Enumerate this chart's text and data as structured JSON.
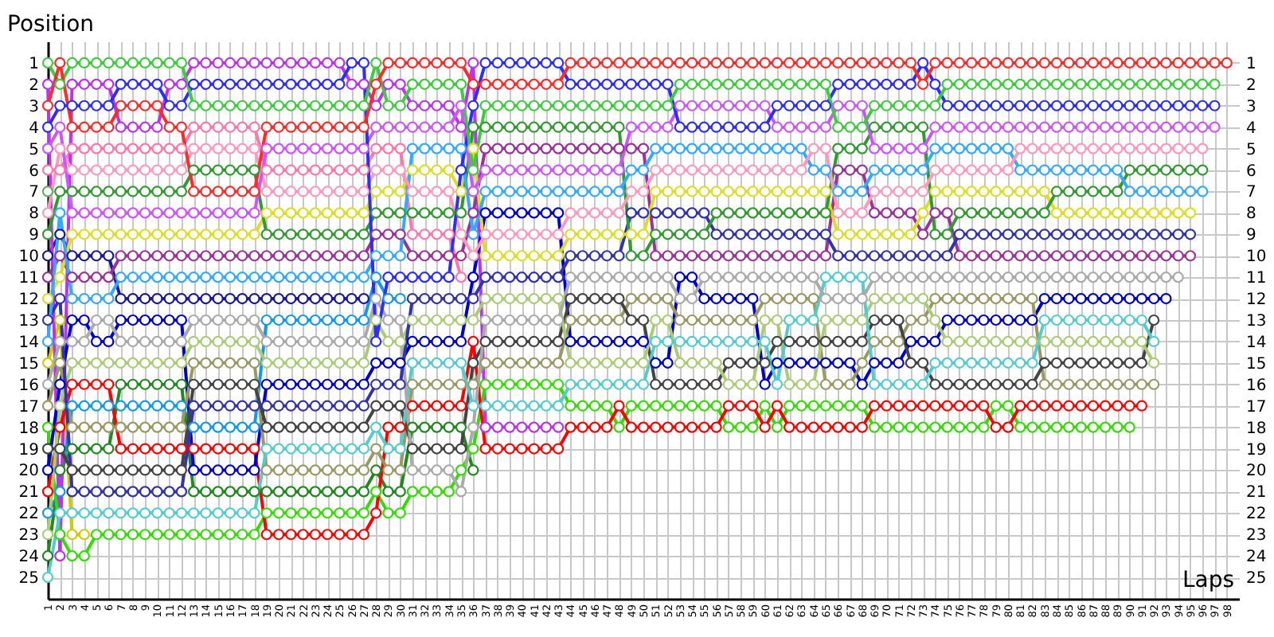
{
  "chart_data": {
    "type": "line",
    "xlabel": "Laps",
    "ylabel": "Position",
    "x": [
      1,
      2,
      3,
      4,
      5,
      6,
      7,
      8,
      9,
      10,
      11,
      12,
      13,
      14,
      15,
      16,
      17,
      18,
      19,
      20,
      21,
      22,
      23,
      24,
      25,
      26,
      27,
      28,
      29,
      30,
      31,
      32,
      33,
      34,
      35,
      36,
      37,
      38,
      39,
      40,
      41,
      42,
      43,
      44,
      45,
      46,
      47,
      48,
      49,
      50,
      51,
      52,
      53,
      54,
      55,
      56,
      57,
      58,
      59,
      60,
      61,
      62,
      63,
      64,
      65,
      66,
      67,
      68,
      69,
      70,
      71,
      72,
      73,
      74,
      75,
      76,
      77,
      78,
      79,
      80,
      81,
      82,
      83,
      84,
      85,
      86,
      87,
      88,
      89,
      90,
      91,
      92,
      93,
      94,
      95,
      96,
      97,
      98
    ],
    "xlim": [
      1,
      99
    ],
    "xticks": [
      1,
      2,
      3,
      4,
      5,
      6,
      7,
      8,
      9,
      10,
      11,
      12,
      13,
      14,
      15,
      16,
      17,
      18,
      19,
      20,
      21,
      22,
      23,
      24,
      25,
      26,
      27,
      28,
      29,
      30,
      31,
      32,
      33,
      34,
      35,
      36,
      37,
      38,
      39,
      40,
      41,
      42,
      43,
      44,
      45,
      46,
      47,
      48,
      49,
      50,
      51,
      52,
      53,
      54,
      55,
      56,
      57,
      58,
      59,
      60,
      61,
      62,
      63,
      64,
      65,
      66,
      67,
      68,
      69,
      70,
      71,
      72,
      73,
      74,
      75,
      76,
      77,
      78,
      79,
      80,
      81,
      82,
      83,
      84,
      85,
      86,
      87,
      88,
      89,
      90,
      91,
      92,
      93,
      94,
      95,
      96,
      97,
      98
    ],
    "ylim": [
      26,
      0
    ],
    "yticks": [
      1,
      2,
      3,
      4,
      5,
      6,
      7,
      8,
      9,
      10,
      11,
      12,
      13,
      14,
      15,
      16,
      17,
      18,
      19,
      20,
      21,
      22,
      23,
      24,
      25
    ],
    "y2lim": [
      26,
      0
    ],
    "y2ticks": [
      1,
      2,
      3,
      4,
      5,
      6,
      7,
      8,
      9,
      10,
      11,
      12,
      13,
      14,
      15,
      16,
      17,
      18,
      19,
      20,
      21,
      22,
      23,
      24,
      25
    ],
    "grid": true,
    "marker": "circle",
    "line_style": "solid",
    "series": [
      {
        "color": "#66aa66",
        "x": [
          1
        ],
        "values": [
          7
        ]
      },
      {
        "color": "#cccc00",
        "x": [
          1,
          2,
          3,
          4
        ],
        "values": [
          15,
          13,
          23,
          23
        ]
      },
      {
        "color": "#1199ee",
        "x": [
          1,
          2,
          3,
          4,
          5,
          6,
          7,
          8,
          9,
          10,
          11,
          12,
          13,
          14,
          15,
          16,
          17,
          18,
          19,
          20,
          21,
          22,
          23,
          24,
          25,
          26,
          27,
          28,
          29,
          30
        ],
        "values": [
          22,
          21,
          17,
          17,
          17,
          17,
          17,
          17,
          17,
          17,
          17,
          17,
          18,
          18,
          18,
          18,
          18,
          18,
          13,
          13,
          13,
          13,
          13,
          13,
          13,
          13,
          13,
          11,
          12,
          12
        ]
      },
      {
        "color": "#1a1a99",
        "x": [
          1,
          2,
          3,
          4,
          5,
          6,
          7,
          8,
          9,
          10,
          11,
          12,
          13,
          14,
          15,
          16,
          17,
          18,
          19,
          20,
          21,
          22,
          23,
          24,
          25,
          26,
          27
        ],
        "values": [
          10,
          9,
          10,
          10,
          10,
          10,
          12,
          12,
          12,
          12,
          12,
          12,
          12,
          12,
          12,
          12,
          12,
          12,
          12,
          12,
          12,
          12,
          12,
          12,
          12,
          12,
          12
        ]
      },
      {
        "color": "#228822",
        "x": [
          1,
          2,
          3,
          4,
          5,
          6,
          7,
          8,
          9,
          10,
          11,
          12,
          13,
          14,
          15,
          16,
          17,
          18,
          19,
          20,
          21,
          22,
          23,
          24,
          25,
          26,
          27,
          28,
          29,
          30,
          31,
          32,
          33,
          34,
          35,
          36
        ],
        "values": [
          24,
          20,
          19,
          19,
          19,
          19,
          16,
          16,
          16,
          16,
          16,
          16,
          21,
          21,
          21,
          21,
          21,
          21,
          21,
          21,
          21,
          21,
          21,
          21,
          21,
          21,
          21,
          20,
          21,
          21,
          18,
          18,
          18,
          18,
          18,
          20
        ]
      },
      {
        "color": "#ff77aa",
        "x": [
          1,
          2,
          3,
          4,
          5,
          6,
          7,
          8,
          9,
          10,
          11,
          12,
          13,
          14,
          15,
          16,
          17,
          18,
          19,
          20,
          21,
          22,
          23,
          24,
          25,
          26,
          27,
          28,
          29,
          30,
          31,
          32,
          33,
          34,
          35
        ],
        "values": [
          6,
          6,
          5,
          5,
          5,
          5,
          5,
          5,
          5,
          5,
          5,
          5,
          4,
          4,
          4,
          4,
          4,
          4,
          6,
          6,
          6,
          6,
          6,
          6,
          6,
          6,
          6,
          5,
          5,
          5,
          9,
          9,
          9,
          9,
          11
        ]
      },
      {
        "color": "#bb33ee",
        "x": [
          1,
          2,
          3,
          4,
          5,
          6,
          7,
          8,
          9,
          10,
          11,
          12,
          13,
          14,
          15,
          16,
          17,
          18,
          19,
          20,
          21,
          22,
          23,
          24,
          25,
          26,
          27,
          28,
          29,
          30,
          31,
          32,
          33,
          34,
          35,
          36,
          37,
          38,
          39,
          40,
          41,
          42,
          43
        ],
        "values": [
          2,
          24,
          2,
          2,
          2,
          2,
          4,
          4,
          4,
          4,
          2,
          2,
          1,
          1,
          1,
          1,
          1,
          1,
          1,
          1,
          1,
          1,
          1,
          1,
          1,
          2,
          2,
          3,
          2,
          2,
          3,
          3,
          3,
          3,
          4,
          1,
          18,
          18,
          18,
          18,
          18,
          18,
          18
        ]
      },
      {
        "color": "#33dd00",
        "values": [
          18,
          23,
          24,
          24,
          23,
          23,
          23,
          23,
          23,
          23,
          23,
          23,
          23,
          23,
          23,
          23,
          23,
          23,
          22,
          22,
          22,
          22,
          22,
          22,
          22,
          22,
          22,
          21,
          22,
          22,
          21,
          21,
          21,
          21,
          20,
          19,
          16,
          16,
          16,
          16,
          16,
          16,
          16,
          17,
          17,
          17,
          17,
          18,
          17,
          17,
          17,
          17,
          17,
          17,
          17,
          17,
          18,
          18,
          18,
          17,
          18,
          17,
          17,
          17,
          17,
          17,
          17,
          17,
          18,
          18,
          18,
          18,
          18,
          18,
          18,
          18,
          18,
          18,
          17,
          17,
          18,
          18,
          18,
          18,
          18,
          18,
          18,
          18,
          18,
          18,
          null,
          null,
          null,
          null,
          null,
          null,
          null,
          null
        ]
      },
      {
        "color": "#ff0000",
        "values": [
          21,
          18,
          16,
          16,
          16,
          16,
          19,
          19,
          19,
          19,
          19,
          19,
          19,
          19,
          19,
          19,
          19,
          19,
          23,
          23,
          23,
          23,
          23,
          23,
          23,
          23,
          23,
          22,
          18,
          18,
          17,
          17,
          17,
          17,
          17,
          14,
          19,
          19,
          19,
          19,
          19,
          19,
          19,
          18,
          18,
          18,
          18,
          17,
          18,
          18,
          18,
          18,
          18,
          18,
          18,
          18,
          17,
          17,
          17,
          18,
          17,
          18,
          18,
          18,
          18,
          18,
          18,
          18,
          17,
          17,
          17,
          17,
          17,
          17,
          17,
          17,
          17,
          17,
          18,
          18,
          17,
          17,
          17,
          17,
          17,
          17,
          17,
          17,
          17,
          17,
          17,
          null,
          null,
          null,
          null,
          null,
          null,
          null
        ]
      },
      {
        "color": "#0000cc",
        "values": [
          20,
          16,
          13,
          13,
          14,
          14,
          13,
          13,
          13,
          13,
          13,
          13,
          20,
          20,
          20,
          20,
          20,
          20,
          16,
          16,
          16,
          16,
          16,
          16,
          16,
          16,
          16,
          15,
          15,
          15,
          14,
          14,
          14,
          14,
          14,
          11,
          8,
          8,
          8,
          8,
          8,
          8,
          8,
          14,
          14,
          14,
          14,
          14,
          14,
          14,
          15,
          15,
          11,
          11,
          12,
          12,
          12,
          12,
          12,
          16,
          15,
          15,
          15,
          15,
          15,
          15,
          15,
          16,
          15,
          15,
          15,
          14,
          14,
          14,
          13,
          13,
          13,
          13,
          13,
          13,
          13,
          13,
          12,
          12,
          12,
          12,
          12,
          12,
          12,
          12,
          12,
          12,
          12,
          null,
          null,
          null,
          null,
          null
        ]
      },
      {
        "color": "#999966",
        "values": [
          17,
          15,
          18,
          18,
          18,
          18,
          18,
          18,
          18,
          18,
          18,
          18,
          15,
          15,
          15,
          15,
          15,
          15,
          20,
          20,
          20,
          20,
          20,
          20,
          20,
          20,
          20,
          19,
          20,
          20,
          16,
          16,
          16,
          16,
          16,
          16,
          15,
          15,
          15,
          15,
          15,
          15,
          15,
          13,
          13,
          13,
          13,
          13,
          12,
          12,
          12,
          12,
          13,
          13,
          13,
          13,
          13,
          13,
          13,
          12,
          12,
          12,
          12,
          12,
          16,
          16,
          16,
          15,
          14,
          14,
          14,
          13,
          13,
          12,
          12,
          12,
          12,
          12,
          12,
          12,
          12,
          12,
          16,
          16,
          16,
          16,
          16,
          16,
          16,
          16,
          16,
          16,
          null,
          null,
          null,
          null,
          null,
          null
        ]
      },
      {
        "color": "#444444",
        "values": [
          19,
          19,
          20,
          20,
          20,
          20,
          20,
          20,
          20,
          20,
          20,
          20,
          16,
          16,
          16,
          16,
          16,
          16,
          18,
          18,
          18,
          18,
          18,
          18,
          18,
          18,
          18,
          17,
          17,
          17,
          19,
          19,
          19,
          19,
          19,
          15,
          14,
          14,
          14,
          14,
          14,
          14,
          14,
          12,
          12,
          12,
          12,
          12,
          13,
          13,
          16,
          16,
          16,
          16,
          16,
          16,
          15,
          15,
          15,
          15,
          14,
          14,
          14,
          14,
          14,
          14,
          14,
          14,
          13,
          13,
          13,
          15,
          15,
          16,
          16,
          16,
          16,
          16,
          16,
          16,
          16,
          16,
          15,
          15,
          15,
          15,
          15,
          15,
          15,
          15,
          15,
          13,
          null,
          null,
          null,
          null,
          null,
          null
        ]
      },
      {
        "color": "#aacc77",
        "values": [
          23,
          17,
          15,
          15,
          15,
          15,
          15,
          15,
          15,
          15,
          15,
          15,
          14,
          14,
          14,
          14,
          14,
          14,
          15,
          15,
          15,
          15,
          15,
          15,
          15,
          15,
          15,
          13,
          14,
          14,
          13,
          13,
          13,
          13,
          13,
          13,
          12,
          12,
          12,
          12,
          12,
          12,
          12,
          15,
          15,
          15,
          15,
          15,
          15,
          15,
          13,
          13,
          15,
          15,
          15,
          15,
          16,
          16,
          16,
          13,
          13,
          16,
          16,
          16,
          13,
          13,
          13,
          13,
          12,
          12,
          12,
          12,
          12,
          13,
          14,
          14,
          14,
          14,
          14,
          14,
          14,
          14,
          14,
          14,
          14,
          14,
          14,
          14,
          14,
          14,
          14,
          15,
          null,
          null,
          null,
          null,
          null,
          null
        ]
      },
      {
        "color": "#55cccc",
        "values": [
          25,
          22,
          22,
          22,
          22,
          22,
          22,
          22,
          22,
          22,
          22,
          22,
          22,
          22,
          22,
          22,
          22,
          22,
          19,
          19,
          19,
          19,
          19,
          19,
          19,
          19,
          19,
          18,
          19,
          19,
          15,
          15,
          15,
          15,
          15,
          17,
          17,
          17,
          17,
          17,
          17,
          17,
          17,
          16,
          16,
          16,
          16,
          16,
          16,
          16,
          14,
          14,
          14,
          14,
          14,
          14,
          14,
          14,
          14,
          14,
          16,
          13,
          13,
          13,
          11,
          11,
          11,
          11,
          16,
          16,
          16,
          16,
          16,
          15,
          15,
          15,
          15,
          15,
          15,
          15,
          15,
          15,
          13,
          13,
          13,
          13,
          13,
          13,
          13,
          13,
          13,
          14,
          null,
          null,
          null,
          null,
          null,
          null
        ]
      },
      {
        "color": "#aaaaaa",
        "values": [
          16,
          14,
          14,
          14,
          13,
          13,
          14,
          14,
          14,
          14,
          14,
          14,
          13,
          13,
          13,
          13,
          13,
          13,
          14,
          14,
          14,
          14,
          14,
          14,
          14,
          14,
          14,
          12,
          13,
          13,
          20,
          20,
          20,
          20,
          21,
          18,
          13,
          13,
          13,
          13,
          13,
          13,
          13,
          11,
          11,
          11,
          11,
          11,
          11,
          11,
          11,
          11,
          12,
          12,
          11,
          11,
          11,
          11,
          11,
          11,
          11,
          11,
          11,
          11,
          12,
          12,
          12,
          12,
          11,
          11,
          11,
          11,
          11,
          11,
          11,
          11,
          11,
          11,
          11,
          11,
          11,
          11,
          11,
          11,
          11,
          11,
          11,
          11,
          11,
          11,
          11,
          11,
          11,
          11,
          null,
          null,
          null,
          null
        ]
      },
      {
        "color": "#993399",
        "values": [
          11,
          10,
          11,
          11,
          11,
          11,
          10,
          10,
          10,
          10,
          10,
          10,
          10,
          10,
          10,
          10,
          10,
          10,
          10,
          10,
          10,
          10,
          10,
          10,
          10,
          10,
          10,
          9,
          9,
          9,
          10,
          10,
          10,
          10,
          10,
          8,
          5,
          5,
          5,
          5,
          5,
          5,
          5,
          5,
          5,
          5,
          5,
          5,
          5,
          5,
          10,
          10,
          10,
          10,
          10,
          10,
          10,
          10,
          10,
          10,
          10,
          10,
          10,
          10,
          10,
          6,
          6,
          6,
          8,
          8,
          8,
          8,
          9,
          8,
          8,
          10,
          10,
          10,
          10,
          10,
          10,
          10,
          10,
          10,
          10,
          10,
          10,
          10,
          10,
          10,
          10,
          10,
          10,
          10,
          10,
          null,
          null,
          null
        ]
      },
      {
        "color": "#3333aa",
        "values": [
          13,
          12,
          21,
          21,
          21,
          21,
          21,
          21,
          21,
          21,
          21,
          21,
          17,
          17,
          17,
          17,
          17,
          17,
          17,
          17,
          17,
          17,
          17,
          17,
          17,
          17,
          17,
          16,
          16,
          16,
          12,
          12,
          12,
          12,
          12,
          12,
          11,
          11,
          11,
          11,
          11,
          11,
          11,
          10,
          10,
          10,
          10,
          10,
          8,
          8,
          8,
          8,
          8,
          8,
          8,
          9,
          9,
          9,
          9,
          9,
          9,
          9,
          9,
          9,
          9,
          10,
          10,
          10,
          10,
          10,
          10,
          10,
          10,
          10,
          10,
          9,
          9,
          9,
          9,
          9,
          9,
          9,
          9,
          9,
          9,
          9,
          9,
          9,
          9,
          9,
          9,
          9,
          9,
          9,
          9,
          null,
          null,
          null
        ]
      },
      {
        "color": "#dddd22",
        "values": [
          12,
          11,
          9,
          9,
          9,
          9,
          9,
          9,
          9,
          9,
          9,
          9,
          9,
          9,
          9,
          9,
          9,
          9,
          8,
          8,
          8,
          8,
          8,
          8,
          8,
          8,
          8,
          7,
          7,
          7,
          6,
          6,
          6,
          6,
          7,
          5,
          10,
          10,
          10,
          10,
          10,
          10,
          10,
          9,
          9,
          9,
          9,
          9,
          9,
          9,
          7,
          7,
          7,
          7,
          7,
          7,
          7,
          7,
          7,
          7,
          7,
          7,
          7,
          7,
          7,
          9,
          9,
          9,
          9,
          9,
          9,
          9,
          8,
          7,
          7,
          7,
          7,
          7,
          7,
          7,
          7,
          7,
          7,
          8,
          8,
          8,
          8,
          8,
          8,
          8,
          8,
          8,
          8,
          8,
          8,
          null,
          null,
          null
        ]
      },
      {
        "color": "#339933",
        "values": [
          9,
          7,
          7,
          7,
          7,
          7,
          7,
          7,
          7,
          7,
          7,
          7,
          6,
          6,
          6,
          6,
          6,
          6,
          9,
          9,
          9,
          9,
          9,
          9,
          9,
          9,
          9,
          8,
          8,
          8,
          8,
          8,
          8,
          8,
          8,
          4,
          4,
          4,
          4,
          4,
          4,
          4,
          4,
          4,
          4,
          4,
          4,
          4,
          10,
          10,
          9,
          9,
          9,
          9,
          9,
          8,
          8,
          8,
          8,
          8,
          8,
          8,
          8,
          8,
          8,
          5,
          5,
          5,
          4,
          4,
          4,
          4,
          4,
          9,
          9,
          8,
          8,
          8,
          8,
          8,
          8,
          8,
          8,
          7,
          7,
          7,
          7,
          7,
          7,
          6,
          6,
          6,
          6,
          6,
          6,
          6,
          null,
          null
        ]
      },
      {
        "color": "#33aaff",
        "values": [
          14,
          8,
          12,
          12,
          12,
          12,
          11,
          11,
          11,
          11,
          11,
          11,
          11,
          11,
          11,
          11,
          11,
          11,
          11,
          11,
          11,
          11,
          11,
          11,
          11,
          11,
          11,
          10,
          10,
          10,
          5,
          5,
          5,
          5,
          5,
          9,
          7,
          7,
          7,
          7,
          7,
          7,
          7,
          7,
          7,
          7,
          7,
          7,
          6,
          6,
          5,
          5,
          5,
          5,
          5,
          5,
          5,
          5,
          5,
          5,
          5,
          5,
          5,
          6,
          6,
          7,
          7,
          7,
          6,
          6,
          6,
          6,
          6,
          5,
          5,
          5,
          5,
          5,
          5,
          5,
          6,
          6,
          6,
          6,
          6,
          6,
          6,
          6,
          6,
          7,
          7,
          7,
          7,
          7,
          7,
          7,
          null,
          null
        ]
      },
      {
        "color": "#ff99bb",
        "values": [
          8,
          5,
          6,
          6,
          6,
          6,
          6,
          6,
          6,
          6,
          6,
          6,
          5,
          5,
          5,
          5,
          5,
          5,
          7,
          7,
          7,
          7,
          7,
          7,
          7,
          7,
          7,
          6,
          6,
          6,
          7,
          7,
          7,
          7,
          9,
          10,
          9,
          9,
          9,
          9,
          9,
          9,
          9,
          8,
          8,
          8,
          8,
          8,
          7,
          7,
          6,
          6,
          6,
          6,
          6,
          6,
          6,
          6,
          6,
          6,
          6,
          6,
          6,
          5,
          5,
          8,
          8,
          8,
          7,
          7,
          7,
          7,
          7,
          6,
          6,
          6,
          6,
          6,
          6,
          6,
          5,
          5,
          5,
          5,
          5,
          5,
          5,
          5,
          5,
          5,
          5,
          5,
          5,
          5,
          5,
          5,
          null,
          null
        ]
      },
      {
        "color": "#cc55ff",
        "values": [
          5,
          4,
          8,
          8,
          8,
          8,
          8,
          8,
          8,
          8,
          8,
          8,
          8,
          8,
          8,
          8,
          8,
          8,
          5,
          5,
          5,
          5,
          5,
          5,
          5,
          5,
          5,
          4,
          4,
          4,
          4,
          4,
          4,
          4,
          3,
          7,
          6,
          6,
          6,
          6,
          6,
          6,
          6,
          6,
          6,
          6,
          6,
          6,
          4,
          4,
          4,
          4,
          3,
          3,
          3,
          3,
          3,
          3,
          3,
          3,
          4,
          4,
          4,
          4,
          4,
          3,
          3,
          3,
          5,
          5,
          5,
          5,
          5,
          4,
          4,
          4,
          4,
          4,
          4,
          4,
          4,
          4,
          4,
          4,
          4,
          4,
          4,
          4,
          4,
          4,
          4,
          4,
          4,
          4,
          4,
          4,
          4,
          null
        ]
      },
      {
        "color": "#2d2dff",
        "values": [
          4,
          3,
          3,
          3,
          3,
          3,
          2,
          2,
          2,
          2,
          3,
          3,
          2,
          2,
          2,
          2,
          2,
          2,
          2,
          2,
          2,
          2,
          2,
          2,
          2,
          1,
          1,
          14,
          11,
          11,
          11,
          11,
          11,
          11,
          6,
          3,
          1,
          1,
          1,
          1,
          1,
          1,
          1,
          2,
          2,
          2,
          2,
          2,
          2,
          2,
          2,
          2,
          4,
          4,
          4,
          4,
          4,
          4,
          4,
          4,
          3,
          3,
          3,
          3,
          3,
          2,
          2,
          2,
          2,
          2,
          2,
          2,
          1,
          2,
          3,
          3,
          3,
          3,
          3,
          3,
          3,
          3,
          3,
          3,
          3,
          3,
          3,
          3,
          3,
          3,
          3,
          3,
          3,
          3,
          3,
          3,
          3,
          null
        ]
      },
      {
        "color": "#3ccc3c",
        "values": [
          1,
          2,
          1,
          1,
          1,
          1,
          1,
          1,
          1,
          1,
          1,
          1,
          3,
          3,
          3,
          3,
          3,
          3,
          3,
          3,
          3,
          3,
          3,
          3,
          3,
          3,
          3,
          1,
          3,
          3,
          2,
          2,
          2,
          2,
          2,
          6,
          3,
          3,
          3,
          3,
          3,
          3,
          3,
          3,
          3,
          3,
          3,
          3,
          3,
          3,
          3,
          3,
          2,
          2,
          2,
          2,
          2,
          2,
          2,
          2,
          2,
          2,
          2,
          2,
          2,
          4,
          4,
          4,
          3,
          3,
          3,
          3,
          3,
          3,
          2,
          2,
          2,
          2,
          2,
          2,
          2,
          2,
          2,
          2,
          2,
          2,
          2,
          2,
          2,
          2,
          2,
          2,
          2,
          2,
          2,
          2,
          2,
          null
        ]
      },
      {
        "color": "#ff2a2a",
        "values": [
          3,
          1,
          4,
          4,
          4,
          4,
          3,
          3,
          3,
          3,
          4,
          4,
          7,
          7,
          7,
          7,
          7,
          7,
          4,
          4,
          4,
          4,
          4,
          4,
          4,
          4,
          4,
          2,
          1,
          1,
          1,
          1,
          1,
          1,
          1,
          2,
          2,
          2,
          2,
          2,
          2,
          2,
          2,
          1,
          1,
          1,
          1,
          1,
          1,
          1,
          1,
          1,
          1,
          1,
          1,
          1,
          1,
          1,
          1,
          1,
          1,
          1,
          1,
          1,
          1,
          1,
          1,
          1,
          1,
          1,
          1,
          1,
          2,
          1,
          1,
          1,
          1,
          1,
          1,
          1,
          1,
          1,
          1,
          1,
          1,
          1,
          1,
          1,
          1,
          1,
          1,
          1,
          1,
          1,
          1,
          1,
          1,
          1
        ]
      }
    ]
  }
}
